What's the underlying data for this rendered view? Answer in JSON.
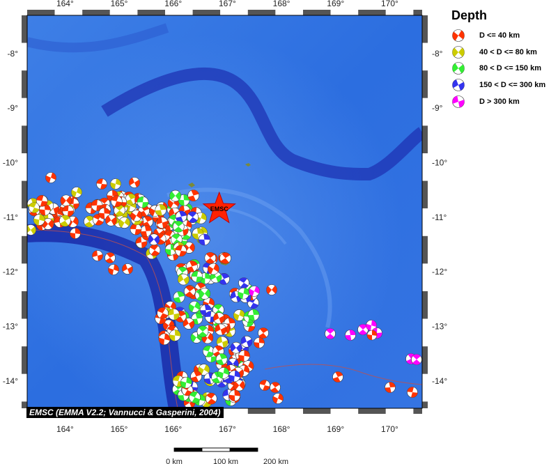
{
  "map": {
    "lon_ticks": [
      "164°",
      "165°",
      "166°",
      "167°",
      "168°",
      "169°",
      "170°"
    ],
    "lat_ticks": [
      "-8°",
      "-9°",
      "-10°",
      "-11°",
      "-12°",
      "-13°",
      "-14°"
    ],
    "lon_range": [
      163.3,
      170.6
    ],
    "lat_range": [
      -7.3,
      -14.5
    ],
    "event_label": "EMSC",
    "event": {
      "lon": 166.85,
      "lat": -10.85
    }
  },
  "legend": {
    "title": "Depth",
    "items": [
      {
        "label": "D <= 40 km",
        "color": "#ff3300"
      },
      {
        "label": "40 < D <= 80 km",
        "color": "#cccc00"
      },
      {
        "label": "80 < D <= 150 km",
        "color": "#33ee33"
      },
      {
        "label": "150 < D <= 300 km",
        "color": "#3333ee"
      },
      {
        "label": "D > 300 km",
        "color": "#ff00ff"
      }
    ]
  },
  "scale_bar": {
    "labels": [
      "0 km",
      "100 km",
      "200 km"
    ]
  },
  "credit": "EMSC (EMMA V2.2; Vannucci & Gasperini, 2004)",
  "colors": {
    "ocean": "#2f6ee0",
    "deep": "#1520a0",
    "frame": "#444444"
  }
}
